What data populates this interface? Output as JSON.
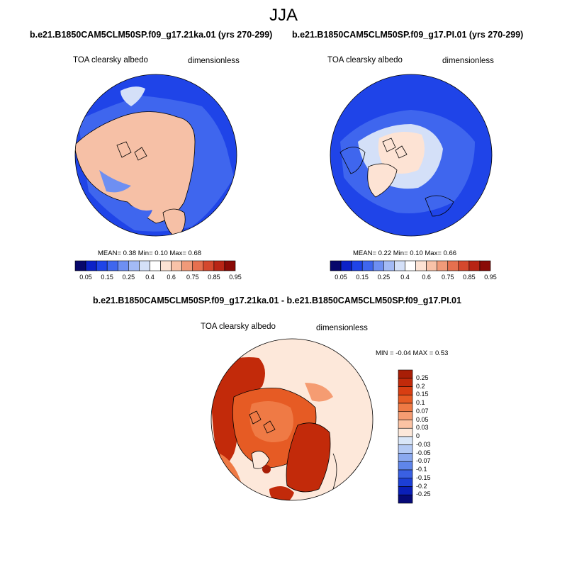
{
  "page": {
    "season": "JJA"
  },
  "panels": [
    {
      "case": "b.e21.B1850CAM5CLM50SP.f09_g17.21ka.01 (yrs 270-299)",
      "variable": "TOA clearsky albedo",
      "units": "dimensionless",
      "stats": "MEAN=   0.38  Min=   0.10  Max=   0.68"
    },
    {
      "case": "b.e21.B1850CAM5CLM50SP.f09_g17.PI.01 (yrs 270-299)",
      "variable": "TOA clearsky albedo",
      "units": "dimensionless",
      "stats": "MEAN=   0.22  Min=   0.10  Max=   0.66"
    },
    {
      "case": "b.e21.B1850CAM5CLM50SP.f09_g17.21ka.01 - b.e21.B1850CAM5CLM50SP.f09_g17.PI.01",
      "variable": "TOA clearsky albedo",
      "units": "dimensionless",
      "stats": "MIN =  -0.04 MAX =   0.53"
    }
  ],
  "colorbar_abs": {
    "labels": [
      "0.05",
      "0.15",
      "0.25",
      "0.4",
      "0.6",
      "0.75",
      "0.85",
      "0.95"
    ],
    "colors": [
      "#08086b",
      "#0c22c8",
      "#1f44e8",
      "#3f66ee",
      "#6e8ff2",
      "#a3baf5",
      "#d4e0f8",
      "#ffffff",
      "#fde3d4",
      "#f8c2a8",
      "#f09a79",
      "#e6704f",
      "#d4482d",
      "#b82515",
      "#8a0a06"
    ]
  },
  "colorbar_diff": {
    "labels": [
      "0.25",
      "0.2",
      "0.15",
      "0.1",
      "0.07",
      "0.05",
      "0.03",
      "0",
      "-0.03",
      "-0.05",
      "-0.07",
      "-0.1",
      "-0.15",
      "-0.2",
      "-0.25"
    ],
    "colors": [
      "#a81e06",
      "#c22a0a",
      "#d83e12",
      "#e65b24",
      "#ef7a45",
      "#f59c72",
      "#fbc3a4",
      "#fde8da",
      "#d9e6f8",
      "#b3c9f4",
      "#8aa8ef",
      "#5f85ea",
      "#3a60e3",
      "#1c3fd6",
      "#0a1fb8",
      "#060a78"
    ]
  },
  "map_colors": {
    "ocean_blue": "#1f44e8",
    "ice_pink": "#f6c0a6",
    "transition_light": "#d4e0f8",
    "diff_red": "#c22a0a",
    "diff_orange": "#e65b24",
    "diff_cream": "#fde8da"
  }
}
